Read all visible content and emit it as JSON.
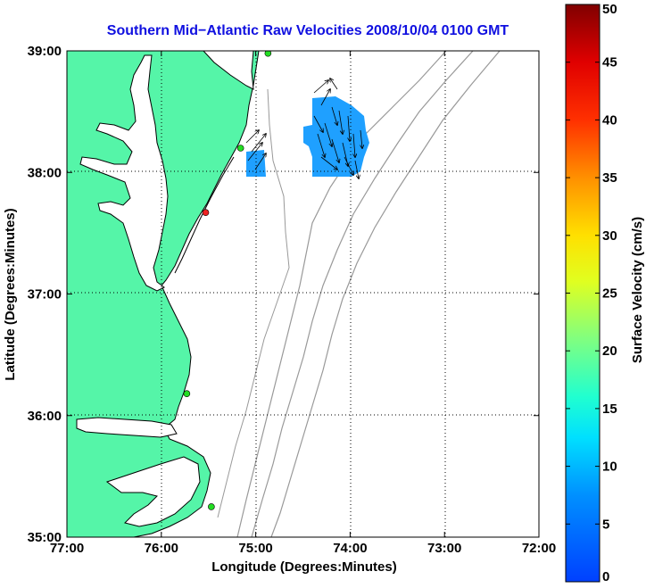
{
  "title": "Southern Mid−Atlantic Raw Velocities 2008/10/04 0100 GMT",
  "xlabel": "Longitude (Degrees:Minutes)",
  "ylabel": "Latitude (Degrees:Minutes)",
  "x_ticks": [
    "77:00",
    "76:00",
    "75:00",
    "74:00",
    "73:00",
    "72:00"
  ],
  "y_ticks": [
    "39:00",
    "38:00",
    "37:00",
    "36:00",
    "35:00"
  ],
  "colorbar": {
    "label": "Surface Velocity (cm/s)",
    "ticks": [
      "50",
      "45",
      "40",
      "35",
      "30",
      "25",
      "20",
      "15",
      "10",
      "5",
      "0"
    ],
    "range": [
      0,
      50
    ]
  },
  "colors": {
    "land": "#55f5a8",
    "water": "#ffffff",
    "coastline": "#000000",
    "isobath": "#999999",
    "title": "#1010e0",
    "site_active": "#22dd22",
    "site_inactive": "#ee2222"
  },
  "map": {
    "lon_range": [
      -77,
      -72
    ],
    "lat_range": [
      35,
      39
    ],
    "grid": true,
    "sites": [
      {
        "lon": -74.87,
        "lat": 38.98,
        "status": "active"
      },
      {
        "lon": -75.16,
        "lat": 38.2,
        "status": "active"
      },
      {
        "lon": -75.53,
        "lat": 37.67,
        "status": "inactive"
      },
      {
        "lon": -75.73,
        "lat": 36.18,
        "status": "active"
      },
      {
        "lon": -75.47,
        "lat": 35.25,
        "status": "active"
      }
    ]
  }
}
